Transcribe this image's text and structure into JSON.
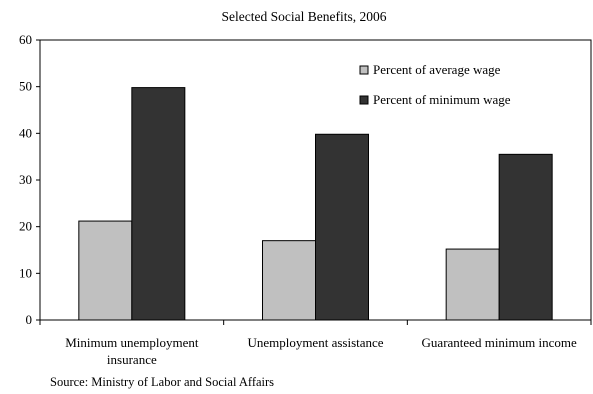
{
  "chart_data": {
    "type": "bar",
    "title": "Selected Social Benefits, 2006",
    "categories": [
      [
        "Minimum unemployment",
        "insurance"
      ],
      [
        "Unemployment assistance"
      ],
      [
        "Guaranteed minimum income"
      ]
    ],
    "series": [
      {
        "name": "Percent of average wage",
        "values": [
          21.2,
          17.0,
          15.2
        ],
        "color": "#c0c0c0"
      },
      {
        "name": "Percent of minimum wage",
        "values": [
          49.8,
          39.8,
          35.5
        ],
        "color": "#333333"
      }
    ],
    "ylim": [
      0,
      60
    ],
    "yticks": [
      0,
      10,
      20,
      30,
      40,
      50,
      60
    ],
    "xlabel": "",
    "ylabel": "",
    "grid": false,
    "legend_position": "top-right",
    "source": "Source: Ministry of Labor and Social Affairs"
  }
}
